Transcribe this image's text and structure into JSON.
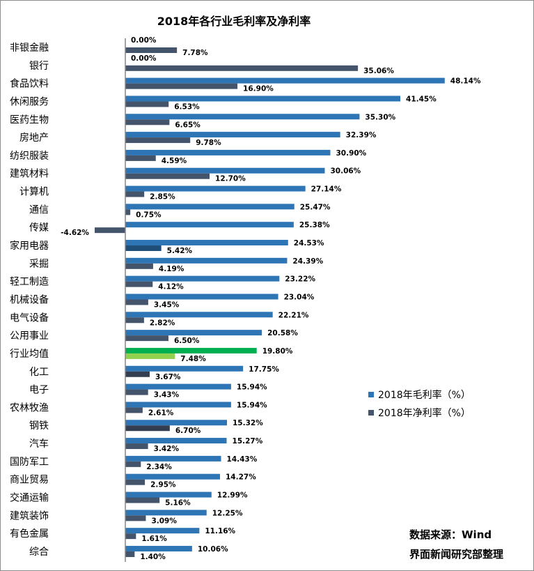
{
  "chart_data": {
    "type": "bar",
    "orientation": "horizontal",
    "title": "2018年各行业毛利率及净利率",
    "categories": [
      "非银金融",
      "银行",
      "食品饮料",
      "休闲服务",
      "医药生物",
      "房地产",
      "纺织服装",
      "建筑材料",
      "计算机",
      "通信",
      "传媒",
      "家用电器",
      "采掘",
      "轻工制造",
      "机械设备",
      "电气设备",
      "公用事业",
      "行业均值",
      "化工",
      "电子",
      "农林牧渔",
      "钢铁",
      "汽车",
      "国防军工",
      "商业贸易",
      "交通运输",
      "建筑装饰",
      "有色金属",
      "综合"
    ],
    "series": [
      {
        "name": "2018年毛利率（%）",
        "color": "#2e75b6",
        "values": [
          0.0,
          0.0,
          48.14,
          41.45,
          35.3,
          32.39,
          30.9,
          30.06,
          27.14,
          25.47,
          25.38,
          24.53,
          24.39,
          23.22,
          23.04,
          22.21,
          20.58,
          19.8,
          17.75,
          15.94,
          15.94,
          15.32,
          15.27,
          14.43,
          14.27,
          12.99,
          12.25,
          11.16,
          10.06
        ]
      },
      {
        "name": "2018年净利率（%）",
        "color": "#44546a",
        "values": [
          7.78,
          35.06,
          16.9,
          6.53,
          6.65,
          9.78,
          4.59,
          12.7,
          2.85,
          0.75,
          -4.62,
          5.42,
          4.19,
          4.12,
          3.45,
          2.82,
          6.5,
          7.48,
          3.67,
          3.43,
          2.61,
          6.7,
          3.42,
          2.34,
          2.95,
          5.16,
          3.09,
          1.61,
          1.4
        ]
      }
    ],
    "highlight": {
      "category": "行业均值",
      "gross_color": "#00b050",
      "net_color": "#92d050"
    },
    "net_color_overrides": {
      "家用电器": "#1f4e79",
      "化工": "#333f50",
      "钢铁": "#333f50"
    },
    "value_suffix": "%",
    "xlabel": "",
    "ylabel": "",
    "grid": false,
    "legend_position": "right"
  },
  "source": {
    "line1": "数据来源：Wind",
    "line2": "界面新闻研究部整理"
  }
}
